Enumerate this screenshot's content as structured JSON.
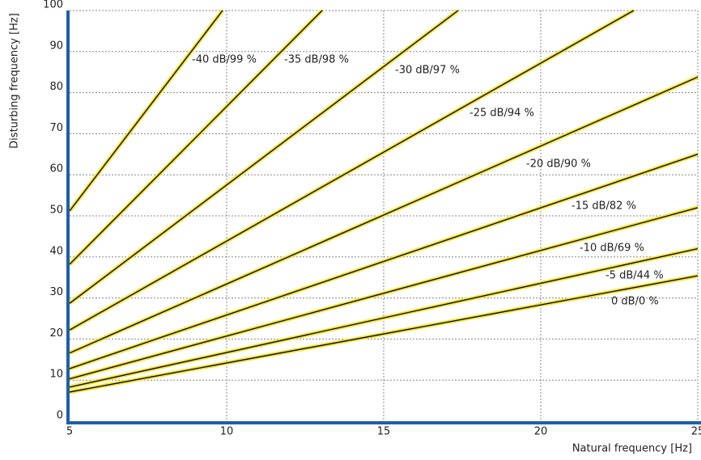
{
  "chart_data": {
    "type": "line",
    "x_label": "Natural frequency [Hz]",
    "y_label": "Disturbing frequency [Hz]",
    "xlim": [
      5,
      25
    ],
    "ylim": [
      0,
      100
    ],
    "xticks": [
      5,
      10,
      15,
      20,
      25
    ],
    "yticks": [
      0,
      10,
      20,
      30,
      40,
      50,
      60,
      70,
      80,
      90,
      100
    ],
    "grid": true,
    "color": "#f2e33a",
    "line_color": "#000000",
    "axis_color": "#1f5fa8",
    "series": [
      {
        "name": "-40 dB/99 %",
        "x": [
          5,
          9.87
        ],
        "values": [
          51.2,
          100
        ]
      },
      {
        "name": "-35 dB/98 %",
        "x": [
          5,
          13.04
        ],
        "values": [
          38.2,
          100
        ]
      },
      {
        "name": "-30 dB/97 %",
        "x": [
          5,
          17.37
        ],
        "values": [
          28.7,
          100
        ]
      },
      {
        "name": "-25 dB/94 %",
        "x": [
          5,
          22.96
        ],
        "values": [
          22.2,
          100
        ]
      },
      {
        "name": "-20 dB/90 %",
        "x": [
          5,
          25
        ],
        "values": [
          16.6,
          83.8
        ]
      },
      {
        "name": "-15 dB/82 %",
        "x": [
          5,
          25
        ],
        "values": [
          12.8,
          65
        ]
      },
      {
        "name": "-10 dB/69 %",
        "x": [
          5,
          25
        ],
        "values": [
          10.3,
          52
        ]
      },
      {
        "name": "-5 dB/44 %",
        "x": [
          5,
          25
        ],
        "values": [
          8.3,
          42
        ]
      },
      {
        "name": "0 dB/0 %",
        "x": [
          5,
          25
        ],
        "values": [
          7.1,
          35.4
        ]
      }
    ]
  }
}
